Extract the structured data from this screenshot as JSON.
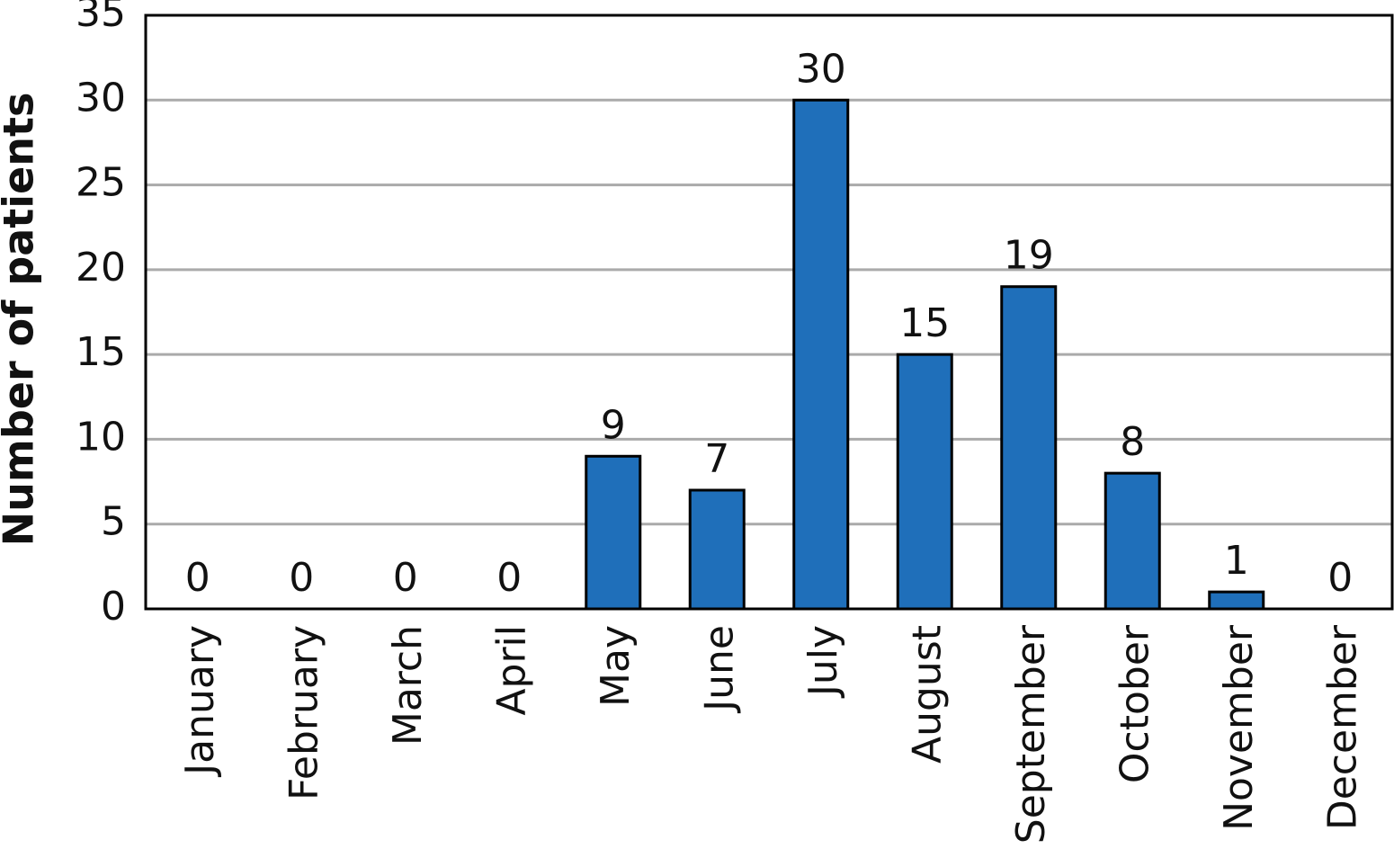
{
  "chart_data": {
    "type": "bar",
    "y_label": "Number of patients",
    "categories": [
      "January",
      "February",
      "March",
      "April",
      "May",
      "June",
      "July",
      "August",
      "September",
      "October",
      "November",
      "December"
    ],
    "values": [
      0,
      0,
      0,
      0,
      9,
      7,
      30,
      15,
      19,
      8,
      1,
      0
    ],
    "color": "#1f6fba",
    "ylim": [
      0,
      35
    ],
    "yticks": [
      0,
      5,
      10,
      15,
      20,
      25,
      30,
      35
    ],
    "grid": true
  }
}
